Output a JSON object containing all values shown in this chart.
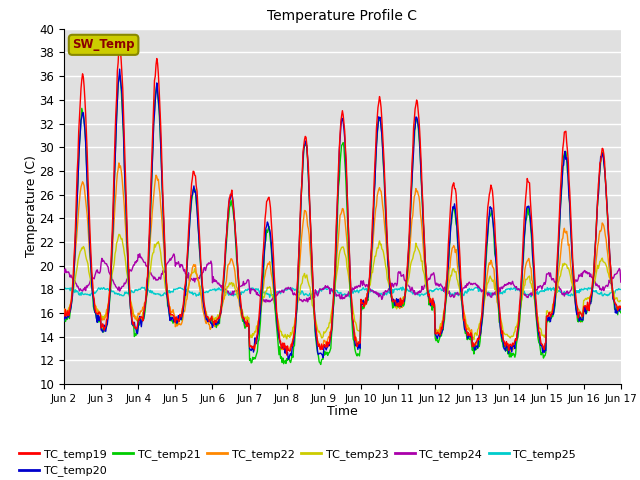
{
  "title": "Temperature Profile C",
  "xlabel": "Time",
  "ylabel": "Temperature (C)",
  "ylim": [
    10,
    40
  ],
  "colors": {
    "TC_temp19": "#FF0000",
    "TC_temp20": "#0000CC",
    "TC_temp21": "#00CC00",
    "TC_temp22": "#FF8800",
    "TC_temp23": "#CCCC00",
    "TC_temp24": "#AA00AA",
    "TC_temp25": "#00CCCC"
  },
  "sw_temp_box_facecolor": "#CCCC00",
  "sw_temp_box_edgecolor": "#888800",
  "sw_temp_text_color": "#8B0000",
  "background_color": "#E0E0E0",
  "grid_color": "#FFFFFF",
  "xtick_labels": [
    "Jun 2",
    "Jun 3",
    "Jun 4",
    "Jun 5",
    "Jun 6",
    "Jun 7",
    "Jun 8",
    "Jun 9",
    "Jun 10",
    "Jun 11",
    "Jun 12",
    "Jun 13",
    "Jun 14",
    "Jun 15",
    "Jun 16",
    "Jun 17"
  ],
  "peaks19": [
    36,
    38.5,
    37.2,
    28,
    26.2,
    25.8,
    30.8,
    33,
    34.2,
    34,
    27,
    26.8,
    27.2,
    31.3,
    29.8
  ],
  "peaks20": [
    33,
    36,
    35,
    26.6,
    26.0,
    23.5,
    30.5,
    32.5,
    32.5,
    32.5,
    25,
    24.8,
    25,
    29.5,
    29.5
  ],
  "peaks21": [
    33,
    36,
    35,
    26.5,
    25.3,
    23.2,
    30.5,
    30.5,
    32.5,
    32.5,
    24.8,
    24.5,
    24.8,
    29.5,
    29.5
  ],
  "peaks22": [
    27,
    28.5,
    27.5,
    20,
    20.5,
    20.3,
    24.5,
    24.8,
    26.5,
    26.5,
    21.5,
    20.5,
    20.5,
    23,
    23.5
  ],
  "peaks23": [
    21.5,
    22.5,
    22,
    19.5,
    18.5,
    18.2,
    19.2,
    21.5,
    21.8,
    21.5,
    19.5,
    19.0,
    19.0,
    20.2,
    20.5
  ],
  "troughs19": [
    15.8,
    14.8,
    15.5,
    15.5,
    15.2,
    13.2,
    13.0,
    13.3,
    16.8,
    16.8,
    14.2,
    13.3,
    13.2,
    15.8,
    16.5
  ],
  "troughs20": [
    15.5,
    14.5,
    15.3,
    15.3,
    15.0,
    13.0,
    12.5,
    13.0,
    16.8,
    16.8,
    14.0,
    13.0,
    13.0,
    15.5,
    16.3
  ],
  "troughs21": [
    15.5,
    14.5,
    15.3,
    15.3,
    15.0,
    12.0,
    12.0,
    12.5,
    16.5,
    16.5,
    13.8,
    12.8,
    12.5,
    15.3,
    16.3
  ],
  "troughs22": [
    16.0,
    15.5,
    16.0,
    15.0,
    15.0,
    13.0,
    13.0,
    13.5,
    16.8,
    16.5,
    14.5,
    13.2,
    13.0,
    15.5,
    16.5
  ],
  "troughs23": [
    16.0,
    15.5,
    15.5,
    15.5,
    15.5,
    14.0,
    14.0,
    14.5,
    16.5,
    16.8,
    14.5,
    14.0,
    14.0,
    16.0,
    17.0
  ],
  "base24": [
    18.8,
    19.2,
    19.8,
    19.5,
    18.2,
    17.5,
    17.5,
    17.8,
    18.0,
    18.5,
    18.0,
    18.0,
    18.0,
    18.5,
    18.8
  ],
  "amp24": [
    0.8,
    1.2,
    1.0,
    0.8,
    0.5,
    0.5,
    0.5,
    0.5,
    0.5,
    0.8,
    0.5,
    0.5,
    0.5,
    0.8,
    0.8
  ],
  "base25": 17.8,
  "amp25": 0.25
}
